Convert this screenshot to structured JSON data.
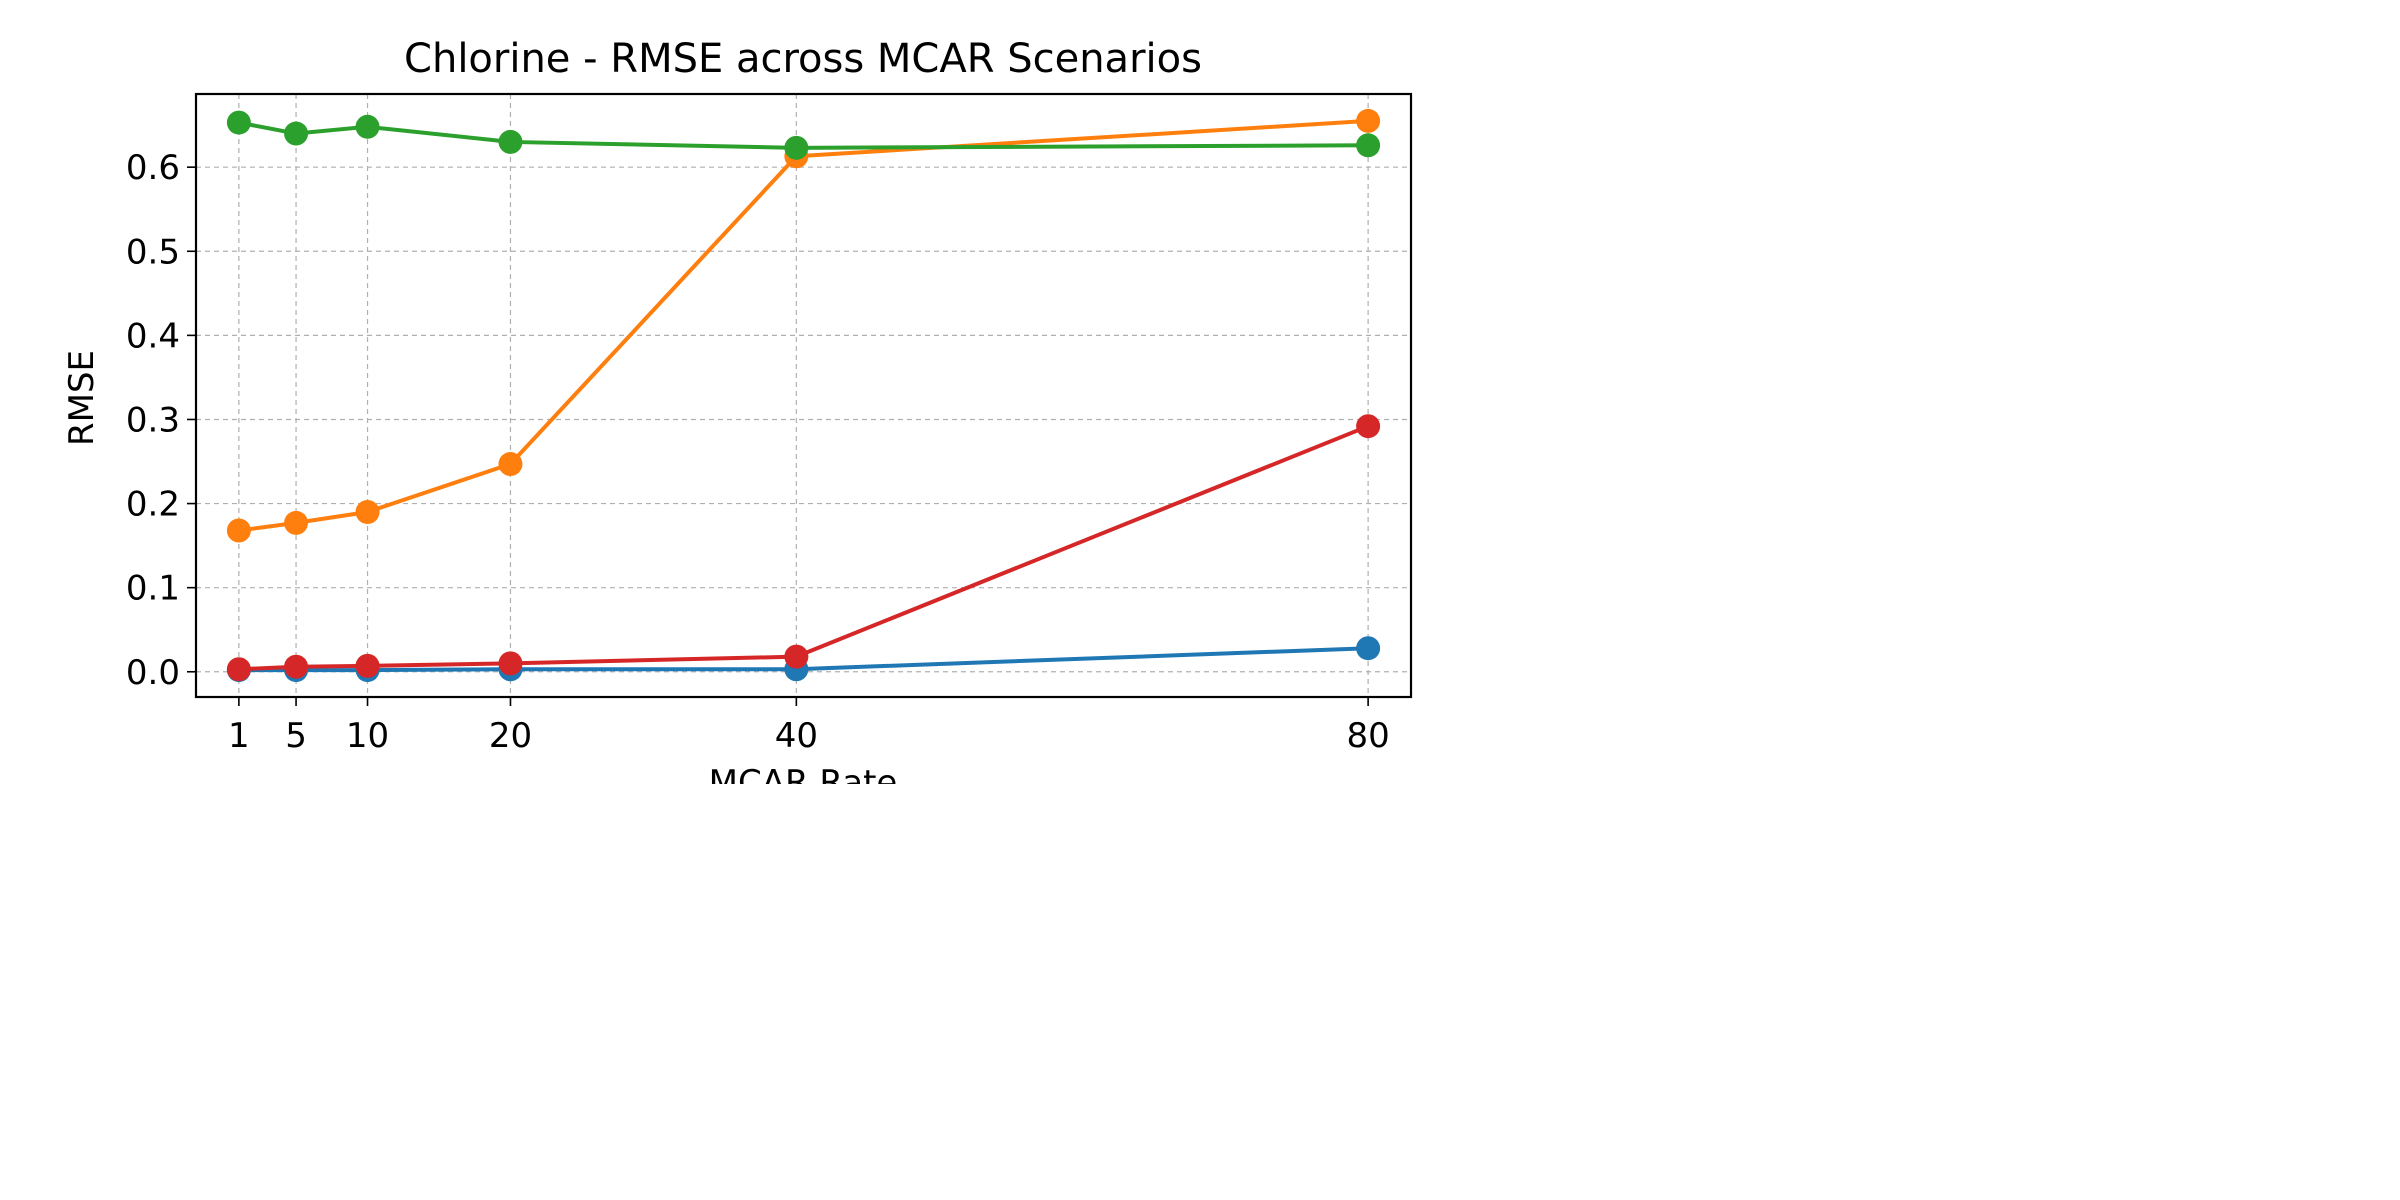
{
  "chart_data": {
    "type": "line",
    "title": "Chlorine - RMSE across MCAR Scenarios",
    "xlabel": "MCAR Rate",
    "ylabel": "RMSE",
    "x": [
      1,
      5,
      10,
      20,
      40,
      80
    ],
    "xticks": [
      "1",
      "5",
      "10",
      "20",
      "40",
      "80"
    ],
    "xlim": [
      -2,
      83
    ],
    "ylim": [
      -0.03,
      0.687
    ],
    "yticks": [
      "0.0",
      "0.1",
      "0.2",
      "0.3",
      "0.4",
      "0.5",
      "0.6"
    ],
    "grid": true,
    "series": [
      {
        "color": "#1f77b4",
        "values": [
          0.002,
          0.002,
          0.002,
          0.003,
          0.003,
          0.028
        ]
      },
      {
        "color": "#ff7f0e",
        "values": [
          0.168,
          0.177,
          0.19,
          0.247,
          0.613,
          0.655
        ]
      },
      {
        "color": "#2ca02c",
        "values": [
          0.653,
          0.64,
          0.648,
          0.63,
          0.623,
          0.626
        ]
      },
      {
        "color": "#d62728",
        "values": [
          0.003,
          0.006,
          0.007,
          0.01,
          0.018,
          0.292
        ]
      }
    ]
  }
}
